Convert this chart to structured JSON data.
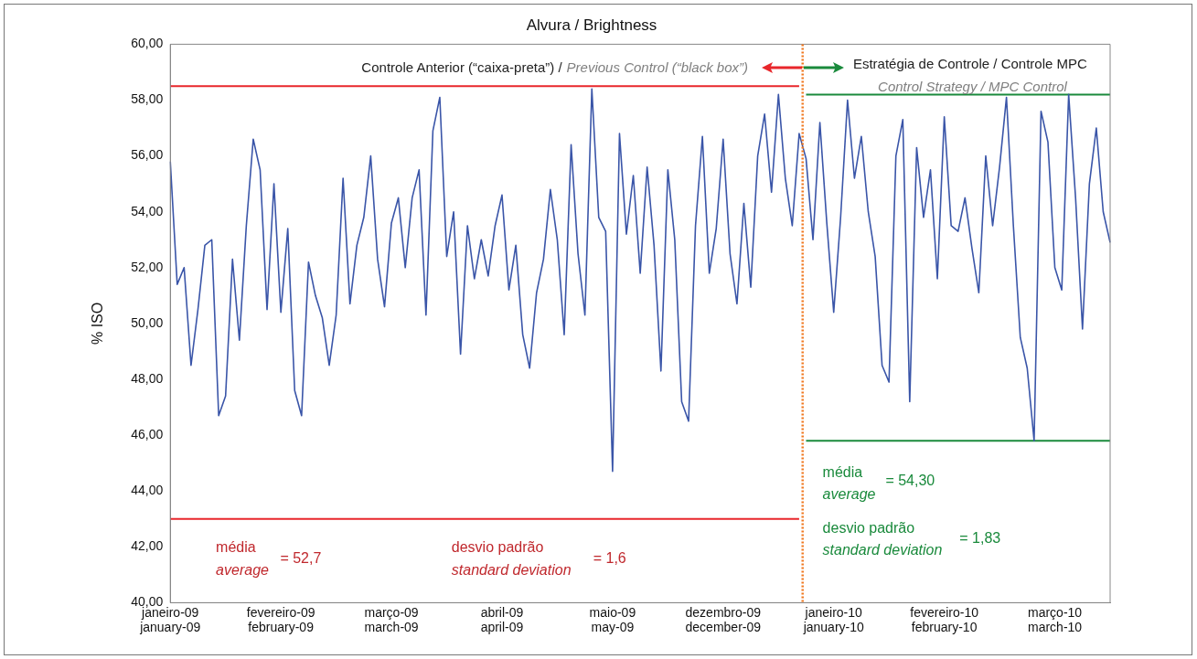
{
  "chart_data": {
    "type": "line",
    "title": "Alvura / Brightness",
    "ylabel": "% ISO",
    "categories": [
      "janeiro-09\njanuary-09",
      null,
      null,
      null,
      null,
      null,
      null,
      null,
      null,
      null,
      null,
      null,
      null,
      null,
      null,
      null,
      "fevereiro-09\nfebruary-09",
      null,
      null,
      null,
      null,
      null,
      null,
      null,
      null,
      null,
      null,
      null,
      null,
      null,
      null,
      null,
      "março-09\nmarch-09",
      null,
      null,
      null,
      null,
      null,
      null,
      null,
      null,
      null,
      null,
      null,
      null,
      null,
      null,
      null,
      "abril-09\napril-09",
      null,
      null,
      null,
      null,
      null,
      null,
      null,
      null,
      null,
      null,
      null,
      null,
      null,
      null,
      null,
      "maio-09\nmay-09",
      null,
      null,
      null,
      null,
      null,
      null,
      null,
      null,
      null,
      null,
      null,
      null,
      null,
      null,
      null,
      "dezembro-09\ndecember-09",
      null,
      null,
      null,
      null,
      null,
      null,
      null,
      null,
      null,
      null,
      null,
      null,
      null,
      null,
      null,
      "janeiro-10\njanuary-10",
      null,
      null,
      null,
      null,
      null,
      null,
      null,
      null,
      null,
      null,
      null,
      null,
      null,
      null,
      null,
      "fevereiro-10\nfebruary-10",
      null,
      null,
      null,
      null,
      null,
      null,
      null,
      null,
      null,
      null,
      null,
      null,
      null,
      null,
      null,
      "março-10\nmarch-10",
      null,
      null,
      null,
      null,
      null,
      null,
      null,
      null
    ],
    "ylim": [
      40,
      60
    ],
    "yticks": [
      {
        "value": 40,
        "label": "40,00"
      },
      {
        "value": 42,
        "label": "42,00"
      },
      {
        "value": 44,
        "label": "44,00"
      },
      {
        "value": 46,
        "label": "46,00"
      },
      {
        "value": 48,
        "label": "48,00"
      },
      {
        "value": 50,
        "label": "50,00"
      },
      {
        "value": 52,
        "label": "52,00"
      },
      {
        "value": 54,
        "label": "54,00"
      },
      {
        "value": 56,
        "label": "56,00"
      },
      {
        "value": 58,
        "label": "58,00"
      },
      {
        "value": 60,
        "label": "60,00"
      }
    ],
    "grid": false,
    "legend": false,
    "marker": "none",
    "series": [
      {
        "color": "#3a55a8",
        "values": [
          55.8,
          51.4,
          52.0,
          48.5,
          50.5,
          52.8,
          53.0,
          46.7,
          47.4,
          52.3,
          49.4,
          53.5,
          56.6,
          55.5,
          50.5,
          55.0,
          50.4,
          53.4,
          47.6,
          46.7,
          52.2,
          51.0,
          50.2,
          48.5,
          50.3,
          55.2,
          50.7,
          52.8,
          53.8,
          56.0,
          52.3,
          50.6,
          53.6,
          54.5,
          52.0,
          54.5,
          55.5,
          50.3,
          56.9,
          58.1,
          52.4,
          54.0,
          48.9,
          53.5,
          51.6,
          53.0,
          51.7,
          53.5,
          54.6,
          51.2,
          52.8,
          49.6,
          48.4,
          51.1,
          52.3,
          54.8,
          53.0,
          49.6,
          56.4,
          52.5,
          50.3,
          58.4,
          53.8,
          53.3,
          44.7,
          56.8,
          53.2,
          55.3,
          51.8,
          55.6,
          52.8,
          48.3,
          55.5,
          53.0,
          47.2,
          46.5,
          53.5,
          56.7,
          51.8,
          53.4,
          56.6,
          52.5,
          50.7,
          54.3,
          51.3,
          56.0,
          57.5,
          54.7,
          58.2,
          55.2,
          53.5,
          56.8,
          55.9,
          53.0,
          57.2,
          53.6,
          50.4,
          53.8,
          58.0,
          55.2,
          56.7,
          54.0,
          52.4,
          48.5,
          47.9,
          56.0,
          57.3,
          47.2,
          56.3,
          53.8,
          55.5,
          51.6,
          57.4,
          53.5,
          53.3,
          54.5,
          52.7,
          51.1,
          56.0,
          53.5,
          55.6,
          58.1,
          53.5,
          49.5,
          48.4,
          45.8,
          57.6,
          56.5,
          52.0,
          51.2,
          58.2,
          54.5,
          49.8,
          55.0,
          57.0,
          54.0,
          52.9
        ]
      },
      {
        "type": "line",
        "color": "#e8262b",
        "values": [
          58.5,
          58.5,
          58.5,
          58.5,
          58.5,
          58.5,
          58.5,
          58.5,
          58.5,
          58.5,
          58.5,
          58.5,
          58.5,
          58.5,
          58.5,
          58.5,
          58.5,
          58.5,
          58.5,
          58.5,
          58.5,
          58.5,
          58.5,
          58.5,
          58.5,
          58.5,
          58.5,
          58.5,
          58.5,
          58.5,
          58.5,
          58.5,
          58.5,
          58.5,
          58.5,
          58.5,
          58.5,
          58.5,
          58.5,
          58.5,
          58.5,
          58.5,
          58.5,
          58.5,
          58.5,
          58.5,
          58.5,
          58.5,
          58.5,
          58.5,
          58.5,
          58.5,
          58.5,
          58.5,
          58.5,
          58.5,
          58.5,
          58.5,
          58.5,
          58.5,
          58.5,
          58.5,
          58.5,
          58.5,
          58.5,
          58.5,
          58.5,
          58.5,
          58.5,
          58.5,
          58.5,
          58.5,
          58.5,
          58.5,
          58.5,
          58.5,
          58.5,
          58.5,
          58.5,
          58.5,
          58.5,
          58.5,
          58.5,
          58.5,
          58.5,
          58.5,
          58.5,
          58.5,
          58.5,
          58.5,
          58.5,
          58.5,
          null,
          null,
          null,
          null,
          null,
          null,
          null,
          null,
          null,
          null,
          null,
          null,
          null,
          null,
          null,
          null,
          null,
          null,
          null,
          null,
          null,
          null,
          null,
          null,
          null,
          null,
          null,
          null,
          null,
          null,
          null,
          null,
          null,
          null,
          null,
          null,
          null,
          null,
          null,
          null,
          null,
          null,
          null,
          null,
          null
        ]
      },
      {
        "type": "line",
        "color": "#e8262b",
        "values": [
          43.0,
          43.0,
          43.0,
          43.0,
          43.0,
          43.0,
          43.0,
          43.0,
          43.0,
          43.0,
          43.0,
          43.0,
          43.0,
          43.0,
          43.0,
          43.0,
          43.0,
          43.0,
          43.0,
          43.0,
          43.0,
          43.0,
          43.0,
          43.0,
          43.0,
          43.0,
          43.0,
          43.0,
          43.0,
          43.0,
          43.0,
          43.0,
          43.0,
          43.0,
          43.0,
          43.0,
          43.0,
          43.0,
          43.0,
          43.0,
          43.0,
          43.0,
          43.0,
          43.0,
          43.0,
          43.0,
          43.0,
          43.0,
          43.0,
          43.0,
          43.0,
          43.0,
          43.0,
          43.0,
          43.0,
          43.0,
          43.0,
          43.0,
          43.0,
          43.0,
          43.0,
          43.0,
          43.0,
          43.0,
          43.0,
          43.0,
          43.0,
          43.0,
          43.0,
          43.0,
          43.0,
          43.0,
          43.0,
          43.0,
          43.0,
          43.0,
          43.0,
          43.0,
          43.0,
          43.0,
          43.0,
          43.0,
          43.0,
          43.0,
          43.0,
          43.0,
          43.0,
          43.0,
          43.0,
          43.0,
          43.0,
          43.0,
          null,
          null,
          null,
          null,
          null,
          null,
          null,
          null,
          null,
          null,
          null,
          null,
          null,
          null,
          null,
          null,
          null,
          null,
          null,
          null,
          null,
          null,
          null,
          null,
          null,
          null,
          null,
          null,
          null,
          null,
          null,
          null,
          null,
          null,
          null,
          null,
          null,
          null,
          null,
          null,
          null,
          null,
          null,
          null,
          null
        ]
      },
      {
        "type": "line",
        "color": "#1a8a3c",
        "values": [
          null,
          null,
          null,
          null,
          null,
          null,
          null,
          null,
          null,
          null,
          null,
          null,
          null,
          null,
          null,
          null,
          null,
          null,
          null,
          null,
          null,
          null,
          null,
          null,
          null,
          null,
          null,
          null,
          null,
          null,
          null,
          null,
          null,
          null,
          null,
          null,
          null,
          null,
          null,
          null,
          null,
          null,
          null,
          null,
          null,
          null,
          null,
          null,
          null,
          null,
          null,
          null,
          null,
          null,
          null,
          null,
          null,
          null,
          null,
          null,
          null,
          null,
          null,
          null,
          null,
          null,
          null,
          null,
          null,
          null,
          null,
          null,
          null,
          null,
          null,
          null,
          null,
          null,
          null,
          null,
          null,
          null,
          null,
          null,
          null,
          null,
          null,
          null,
          null,
          null,
          null,
          null,
          58.2,
          58.2,
          58.2,
          58.2,
          58.2,
          58.2,
          58.2,
          58.2,
          58.2,
          58.2,
          58.2,
          58.2,
          58.2,
          58.2,
          58.2,
          58.2,
          58.2,
          58.2,
          58.2,
          58.2,
          58.2,
          58.2,
          58.2,
          58.2,
          58.2,
          58.2,
          58.2,
          58.2,
          58.2,
          58.2,
          58.2,
          58.2,
          58.2,
          58.2,
          58.2,
          58.2,
          58.2,
          58.2,
          58.2,
          58.2,
          58.2,
          58.2,
          58.2,
          58.2,
          58.2
        ]
      },
      {
        "type": "line",
        "color": "#1a8a3c",
        "values": [
          null,
          null,
          null,
          null,
          null,
          null,
          null,
          null,
          null,
          null,
          null,
          null,
          null,
          null,
          null,
          null,
          null,
          null,
          null,
          null,
          null,
          null,
          null,
          null,
          null,
          null,
          null,
          null,
          null,
          null,
          null,
          null,
          null,
          null,
          null,
          null,
          null,
          null,
          null,
          null,
          null,
          null,
          null,
          null,
          null,
          null,
          null,
          null,
          null,
          null,
          null,
          null,
          null,
          null,
          null,
          null,
          null,
          null,
          null,
          null,
          null,
          null,
          null,
          null,
          null,
          null,
          null,
          null,
          null,
          null,
          null,
          null,
          null,
          null,
          null,
          null,
          null,
          null,
          null,
          null,
          null,
          null,
          null,
          null,
          null,
          null,
          null,
          null,
          null,
          null,
          null,
          null,
          45.8,
          45.8,
          45.8,
          45.8,
          45.8,
          45.8,
          45.8,
          45.8,
          45.8,
          45.8,
          45.8,
          45.8,
          45.8,
          45.8,
          45.8,
          45.8,
          45.8,
          45.8,
          45.8,
          45.8,
          45.8,
          45.8,
          45.8,
          45.8,
          45.8,
          45.8,
          45.8,
          45.8,
          45.8,
          45.8,
          45.8,
          45.8,
          45.8,
          45.8,
          45.8,
          45.8,
          45.8,
          45.8,
          45.8,
          45.8,
          45.8,
          45.8,
          45.8,
          45.8,
          45.8
        ]
      }
    ],
    "annotations": [
      "Controle Anterior (“caixa-preta”) /",
      "Previous Control (“black box”)",
      "Estratégia de Controle / Controle MPC",
      "Control Strategy / MPC Control",
      "média",
      "average",
      "= 52,7",
      "desvio padrão",
      "standard deviation",
      "= 1,6",
      "média",
      "average",
      "= 54,30",
      "desvio padrão",
      "standard deviation",
      "= 1,83"
    ]
  }
}
